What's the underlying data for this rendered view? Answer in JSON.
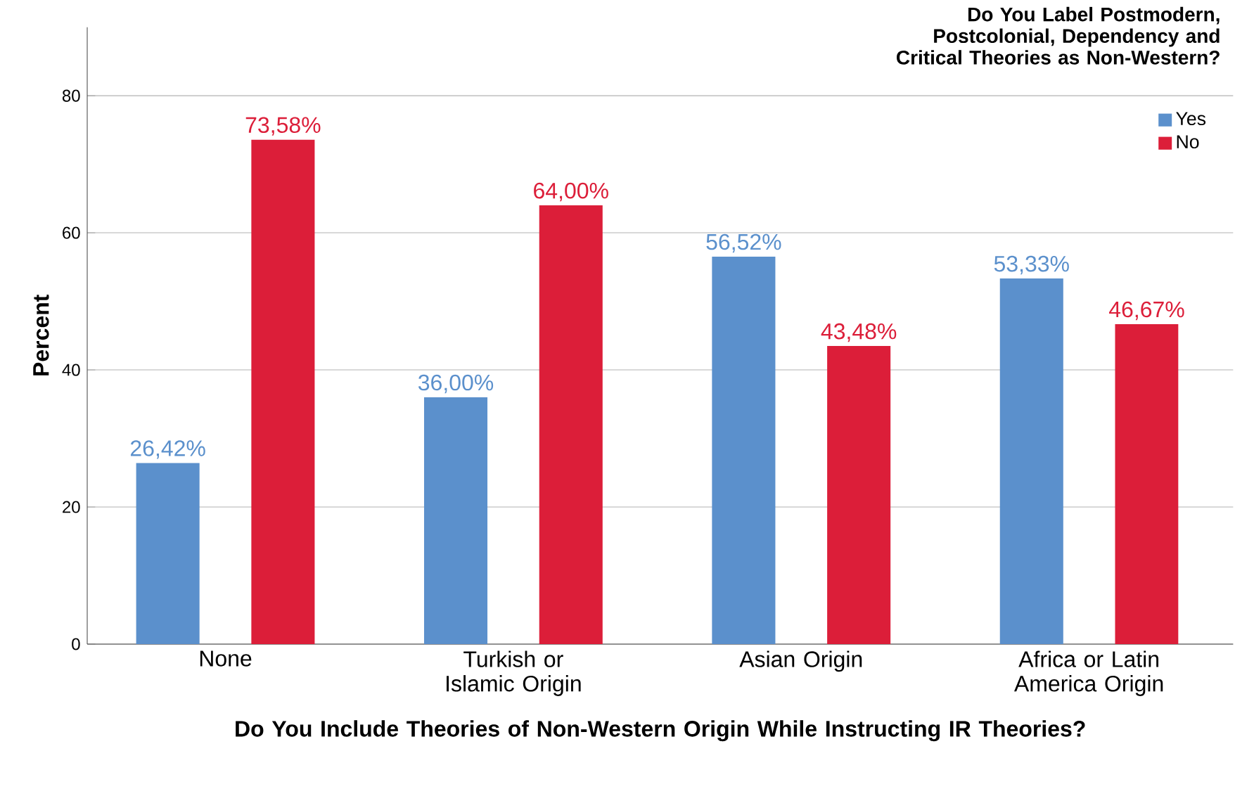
{
  "chart_data": {
    "type": "bar",
    "xlabel": "Do You Include Theories of Non-Western Origin While Instructing IR Theories?",
    "ylabel": "Percent",
    "legend_title": "Do You Label Postmodern, Postcolonial, Dependency and Critical Theories as Non-Western?",
    "categories": [
      "None",
      "Turkish or Islamic Origin",
      "Asian Origin",
      "Africa or Latin America Origin"
    ],
    "series": [
      {
        "name": "Yes",
        "color": "#5b90cc",
        "values": [
          26.42,
          36.0,
          56.52,
          53.33
        ],
        "value_labels": [
          "26,42%",
          "36,00%",
          "56,52%",
          "53,33%"
        ]
      },
      {
        "name": "No",
        "color": "#dc1e39",
        "values": [
          73.58,
          64.0,
          43.48,
          46.67
        ],
        "value_labels": [
          "73,58%",
          "64,00%",
          "43,48%",
          "46,67%"
        ]
      }
    ],
    "ylim": [
      0,
      90
    ],
    "yticks": [
      0,
      20,
      40,
      60,
      80
    ],
    "grid": "y",
    "legend": "top right"
  }
}
